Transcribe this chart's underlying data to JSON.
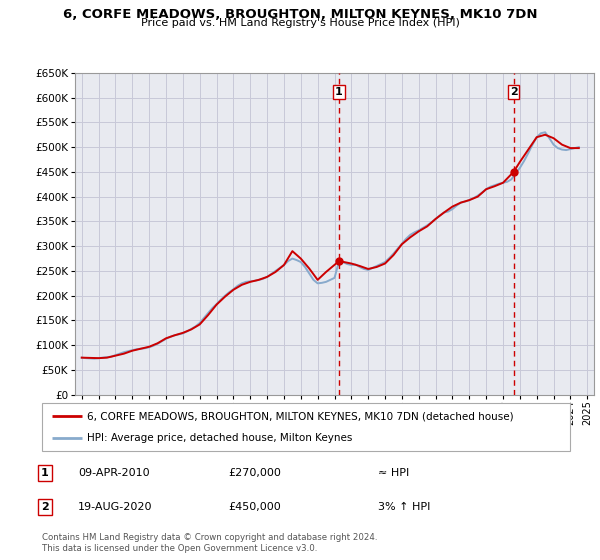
{
  "title": "6, CORFE MEADOWS, BROUGHTON, MILTON KEYNES, MK10 7DN",
  "subtitle": "Price paid vs. HM Land Registry's House Price Index (HPI)",
  "ylim": [
    0,
    650000
  ],
  "yticks": [
    0,
    50000,
    100000,
    150000,
    200000,
    250000,
    300000,
    350000,
    400000,
    450000,
    500000,
    550000,
    600000,
    650000
  ],
  "xlim_min": 1994.6,
  "xlim_max": 2025.4,
  "background_color": "#ffffff",
  "chart_bg_color": "#e8eaf0",
  "grid_color": "#c8c8d8",
  "sale1_date": 2010.27,
  "sale1_price": 270000,
  "sale1_label": "1",
  "sale1_date_str": "09-APR-2010",
  "sale1_hpi_rel": "≈ HPI",
  "sale2_date": 2020.63,
  "sale2_price": 450000,
  "sale2_label": "2",
  "sale2_date_str": "19-AUG-2020",
  "sale2_hpi_rel": "3% ↑ HPI",
  "red_line_color": "#cc0000",
  "blue_line_color": "#88aacc",
  "vline_color": "#cc0000",
  "legend_label_red": "6, CORFE MEADOWS, BROUGHTON, MILTON KEYNES, MK10 7DN (detached house)",
  "legend_label_blue": "HPI: Average price, detached house, Milton Keynes",
  "footer": "Contains HM Land Registry data © Crown copyright and database right 2024.\nThis data is licensed under the Open Government Licence v3.0.",
  "hpi_data_x": [
    1995.0,
    1995.25,
    1995.5,
    1995.75,
    1996.0,
    1996.25,
    1996.5,
    1996.75,
    1997.0,
    1997.25,
    1997.5,
    1997.75,
    1998.0,
    1998.25,
    1998.5,
    1998.75,
    1999.0,
    1999.25,
    1999.5,
    1999.75,
    2000.0,
    2000.25,
    2000.5,
    2000.75,
    2001.0,
    2001.25,
    2001.5,
    2001.75,
    2002.0,
    2002.25,
    2002.5,
    2002.75,
    2003.0,
    2003.25,
    2003.5,
    2003.75,
    2004.0,
    2004.25,
    2004.5,
    2004.75,
    2005.0,
    2005.25,
    2005.5,
    2005.75,
    2006.0,
    2006.25,
    2006.5,
    2006.75,
    2007.0,
    2007.25,
    2007.5,
    2007.75,
    2008.0,
    2008.25,
    2008.5,
    2008.75,
    2009.0,
    2009.25,
    2009.5,
    2009.75,
    2010.0,
    2010.25,
    2010.5,
    2010.75,
    2011.0,
    2011.25,
    2011.5,
    2011.75,
    2012.0,
    2012.25,
    2012.5,
    2012.75,
    2013.0,
    2013.25,
    2013.5,
    2013.75,
    2014.0,
    2014.25,
    2014.5,
    2014.75,
    2015.0,
    2015.25,
    2015.5,
    2015.75,
    2016.0,
    2016.25,
    2016.5,
    2016.75,
    2017.0,
    2017.25,
    2017.5,
    2017.75,
    2018.0,
    2018.25,
    2018.5,
    2018.75,
    2019.0,
    2019.25,
    2019.5,
    2019.75,
    2020.0,
    2020.25,
    2020.5,
    2020.75,
    2021.0,
    2021.25,
    2021.5,
    2021.75,
    2022.0,
    2022.25,
    2022.5,
    2022.75,
    2023.0,
    2023.25,
    2023.5,
    2023.75,
    2024.0,
    2024.25,
    2024.5
  ],
  "hpi_data_y": [
    75000,
    74000,
    73500,
    73000,
    74000,
    75000,
    76000,
    77000,
    80000,
    83000,
    86000,
    88000,
    90000,
    92000,
    93000,
    94000,
    96000,
    99000,
    103000,
    108000,
    113000,
    117000,
    120000,
    122000,
    124000,
    128000,
    133000,
    138000,
    145000,
    155000,
    165000,
    175000,
    183000,
    192000,
    200000,
    207000,
    213000,
    220000,
    225000,
    228000,
    229000,
    230000,
    232000,
    234000,
    238000,
    244000,
    250000,
    256000,
    262000,
    270000,
    275000,
    272000,
    268000,
    258000,
    245000,
    232000,
    225000,
    226000,
    228000,
    232000,
    236000,
    267000,
    268000,
    264000,
    262000,
    263000,
    258000,
    254000,
    252000,
    256000,
    260000,
    264000,
    268000,
    276000,
    285000,
    295000,
    305000,
    315000,
    323000,
    328000,
    332000,
    337000,
    342000,
    348000,
    355000,
    362000,
    368000,
    370000,
    375000,
    382000,
    388000,
    390000,
    393000,
    397000,
    402000,
    408000,
    415000,
    420000,
    423000,
    426000,
    428000,
    430000,
    435000,
    447000,
    458000,
    472000,
    488000,
    505000,
    520000,
    528000,
    530000,
    518000,
    505000,
    498000,
    495000,
    494000,
    496000,
    498000,
    500000
  ],
  "price_data_x": [
    1995.0,
    1995.5,
    1996.0,
    1996.5,
    1997.0,
    1997.5,
    1998.0,
    1998.5,
    1999.0,
    1999.5,
    2000.0,
    2000.5,
    2001.0,
    2001.5,
    2002.0,
    2002.5,
    2003.0,
    2003.5,
    2004.0,
    2004.5,
    2005.0,
    2005.5,
    2006.0,
    2006.5,
    2007.0,
    2007.5,
    2008.0,
    2008.5,
    2009.0,
    2009.5,
    2010.27,
    2011.0,
    2011.5,
    2012.0,
    2012.5,
    2013.0,
    2013.5,
    2014.0,
    2014.5,
    2015.0,
    2015.5,
    2016.0,
    2016.5,
    2017.0,
    2017.5,
    2018.0,
    2018.5,
    2019.0,
    2019.5,
    2020.0,
    2020.63,
    2021.0,
    2021.5,
    2022.0,
    2022.5,
    2023.0,
    2023.5,
    2024.0,
    2024.5
  ],
  "price_data_y": [
    75000,
    74500,
    74000,
    75000,
    79000,
    83000,
    89000,
    93000,
    97000,
    104000,
    114000,
    120000,
    125000,
    132000,
    142000,
    161000,
    182000,
    198000,
    212000,
    222000,
    228000,
    232000,
    238000,
    248000,
    262000,
    290000,
    275000,
    255000,
    232000,
    248000,
    270000,
    265000,
    260000,
    254000,
    258000,
    265000,
    282000,
    304000,
    318000,
    330000,
    340000,
    355000,
    368000,
    380000,
    388000,
    393000,
    400000,
    415000,
    421000,
    428000,
    450000,
    470000,
    495000,
    520000,
    525000,
    518000,
    505000,
    498000,
    498000
  ]
}
